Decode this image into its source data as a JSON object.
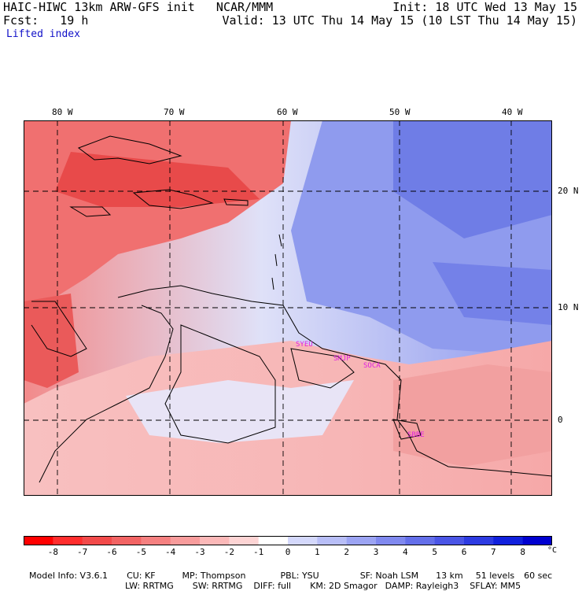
{
  "header": {
    "title_left": "HAIC-HIWC 13km ARW-GFS init   NCAR/MMM",
    "fcst": "Fcst:   19 h",
    "init": "Init: 18 UTC Wed 13 May 15",
    "valid": "Valid: 13 UTC Thu 14 May 15 (10 LST Thu 14 May 15)",
    "field": "Lifted index"
  },
  "map": {
    "lon_labels": [
      "80 W",
      "70 W",
      "60 W",
      "50 W",
      "40 W"
    ],
    "lat_labels": [
      "20 N",
      "10 N",
      "0"
    ],
    "stations": [
      "SYEU",
      "SMJP",
      "SOCA",
      "SBBE"
    ],
    "colors": {
      "neg": "#e83030",
      "pos": "#2030e0",
      "neutral": "#ffffff"
    }
  },
  "colorbar": {
    "labels": [
      "-8",
      "-7",
      "-6",
      "-5",
      "-4",
      "-3",
      "-2",
      "-1",
      "0",
      "1",
      "2",
      "3",
      "4",
      "5",
      "6",
      "7",
      "8"
    ],
    "unit": "°C",
    "colors": [
      "#ff0000",
      "#ff2d2d",
      "#f24a4a",
      "#f26464",
      "#f58080",
      "#f89c9c",
      "#fbb8b8",
      "#fdd4d4",
      "#ffffff",
      "#d4d8fb",
      "#b8bef7",
      "#9ca4f3",
      "#8089ef",
      "#646fea",
      "#4a55e6",
      "#2d3be2",
      "#1020dd",
      "#0000d0"
    ]
  },
  "footer": {
    "line1": [
      "Model Info: V3.6.1",
      "CU: KF",
      "MP: Thompson",
      "PBL: YSU",
      "SF: Noah LSM",
      "13 km",
      "51 levels",
      "60 sec"
    ],
    "line2": [
      "LW: RRTMG",
      "SW: RRTMG",
      "DIFF: full",
      "KM: 2D Smagor",
      "DAMP: Rayleigh3",
      "SFLAY: MM5"
    ]
  }
}
